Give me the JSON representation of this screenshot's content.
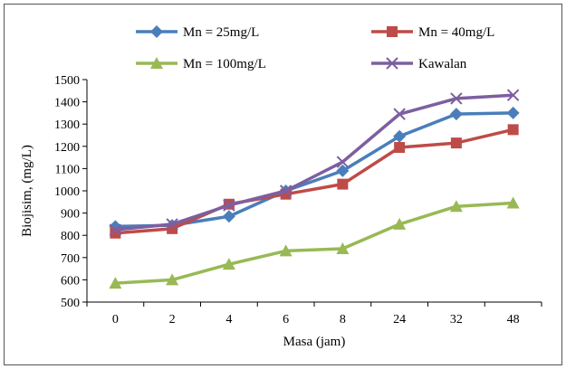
{
  "chart_data": {
    "type": "line",
    "categories": [
      "0",
      "2",
      "4",
      "6",
      "8",
      "24",
      "32",
      "48"
    ],
    "series": [
      {
        "name": "Mn = 25mg/L",
        "color": "#4A7EBB",
        "marker": "diamond",
        "values": [
          840,
          845,
          885,
          1000,
          1090,
          1245,
          1345,
          1350
        ]
      },
      {
        "name": "Mn = 40mg/L",
        "color": "#BE4B48",
        "marker": "square",
        "values": [
          810,
          830,
          940,
          985,
          1030,
          1195,
          1215,
          1275
        ]
      },
      {
        "name": "Mn = 100mg/L",
        "color": "#98B954",
        "marker": "triangle",
        "values": [
          585,
          600,
          670,
          730,
          740,
          850,
          930,
          945
        ]
      },
      {
        "name": "Kawalan",
        "color": "#7D5FA0",
        "marker": "x",
        "values": [
          825,
          850,
          935,
          1000,
          1130,
          1345,
          1415,
          1430
        ]
      }
    ],
    "title": "",
    "xlabel": "Masa (jam)",
    "ylabel": "Biojisim,  (mg/L)",
    "ylim": [
      500,
      1500
    ],
    "yticks": [
      500,
      600,
      700,
      800,
      900,
      1000,
      1100,
      1200,
      1300,
      1400,
      1500
    ],
    "grid": false,
    "legend": "top"
  }
}
